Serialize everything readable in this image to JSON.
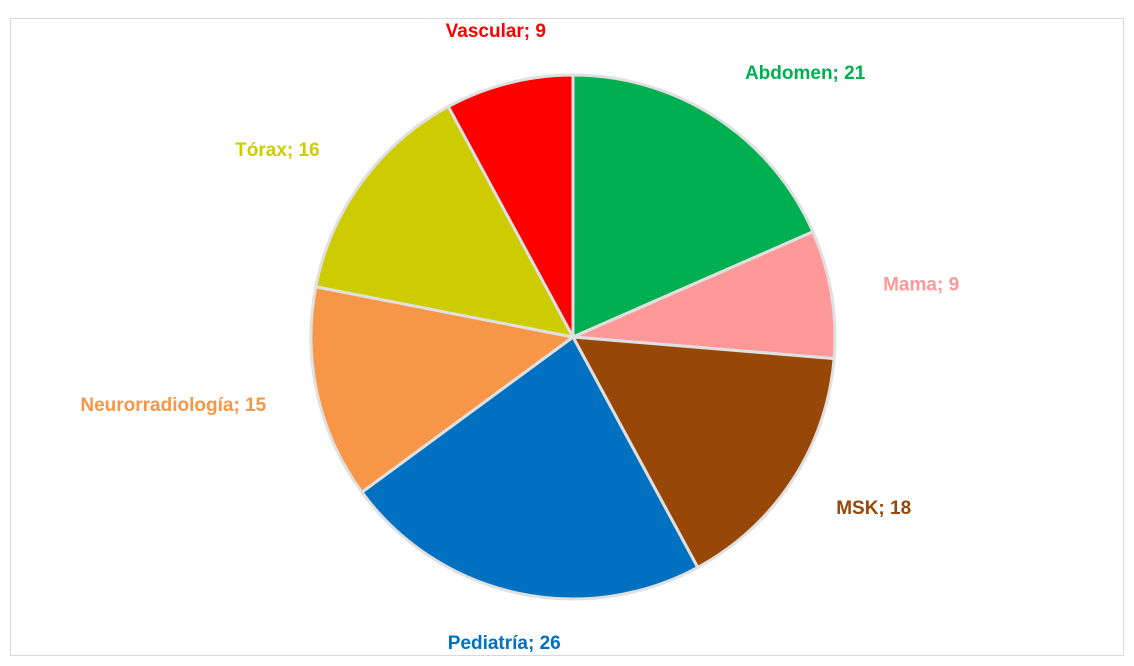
{
  "chart_data": {
    "type": "pie",
    "categories": [
      "Abdomen",
      "Mama",
      "MSK",
      "Pediatría",
      "Neurorradiología",
      "Tórax",
      "Vascular"
    ],
    "values": [
      21,
      9,
      18,
      26,
      15,
      16,
      9
    ],
    "value_labels": [
      "Abdomen; 21",
      "Mama; 9",
      "MSK; 18",
      "Pediatría; 26",
      "Neurorradiología; 15",
      "Tórax; 16",
      "Vascular; 9"
    ],
    "colors": [
      "#00b050",
      "#ff9999",
      "#974706",
      "#0070c0",
      "#f79646",
      "#cccc00",
      "#ff0000"
    ]
  }
}
